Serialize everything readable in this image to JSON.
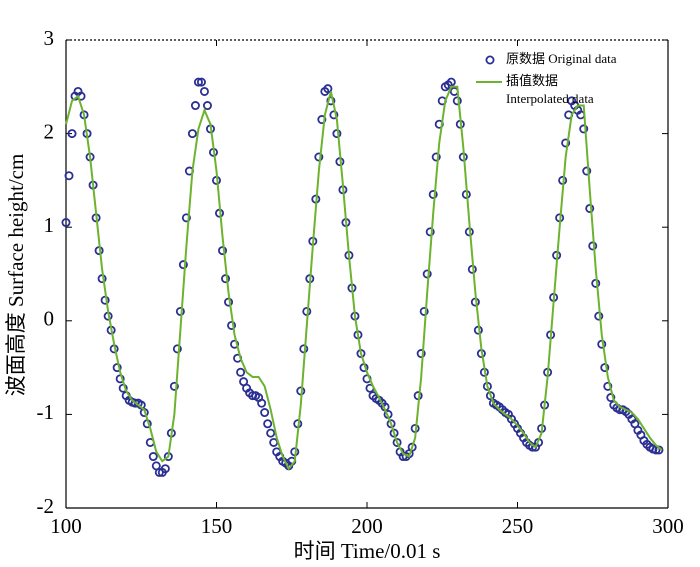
{
  "chart_data": {
    "type": "line",
    "xlabel": "时间 Time/0.01 s",
    "ylabel": "波面高度 Surface height/cm",
    "xlim": [
      100,
      300
    ],
    "xticks": [
      100,
      150,
      200,
      250,
      300
    ],
    "ylim": [
      -2,
      3
    ],
    "yticks": [
      -2,
      -1,
      0,
      1,
      2,
      3
    ],
    "legend": "upper right",
    "series": [
      {
        "name": "原数据 Original data",
        "type": "scatter",
        "color": "#2b2f93",
        "x": [
          100,
          101,
          102,
          103,
          104,
          105,
          106,
          107,
          108,
          109,
          110,
          111,
          112,
          113,
          114,
          115,
          116,
          117,
          118,
          119,
          120,
          121,
          122,
          123,
          124,
          125,
          126,
          127,
          128,
          129,
          130,
          131,
          132,
          133,
          134,
          135,
          136,
          137,
          138,
          139,
          140,
          141,
          142,
          143,
          144,
          145,
          146,
          147,
          148,
          149,
          150,
          151,
          152,
          153,
          154,
          155,
          156,
          157,
          158,
          159,
          160,
          161,
          162,
          163,
          164,
          165,
          166,
          167,
          168,
          169,
          170,
          171,
          172,
          173,
          174,
          175,
          176,
          177,
          178,
          179,
          180,
          181,
          182,
          183,
          184,
          185,
          186,
          187,
          188,
          189,
          190,
          191,
          192,
          193,
          194,
          195,
          196,
          197,
          198,
          199,
          200,
          201,
          202,
          203,
          204,
          205,
          206,
          207,
          208,
          209,
          210,
          211,
          212,
          213,
          214,
          215,
          216,
          217,
          218,
          219,
          220,
          221,
          222,
          223,
          224,
          225,
          226,
          227,
          228,
          229,
          230,
          231,
          232,
          233,
          234,
          235,
          236,
          237,
          238,
          239,
          240,
          241,
          242,
          243,
          244,
          245,
          246,
          247,
          248,
          249,
          250,
          251,
          252,
          253,
          254,
          255,
          256,
          257,
          258,
          259,
          260,
          261,
          262,
          263,
          264,
          265,
          266,
          267,
          268,
          269,
          270,
          271,
          272,
          273,
          274,
          275,
          276,
          277,
          278,
          279,
          280,
          281,
          282,
          283,
          284,
          285,
          286,
          287,
          288,
          289,
          290,
          291,
          292,
          293,
          294,
          295,
          296,
          297
        ],
        "values": [
          1.05,
          1.55,
          2.0,
          2.4,
          2.45,
          2.4,
          2.2,
          2.0,
          1.75,
          1.45,
          1.1,
          0.75,
          0.45,
          0.22,
          0.05,
          -0.1,
          -0.3,
          -0.5,
          -0.62,
          -0.72,
          -0.8,
          -0.85,
          -0.87,
          -0.88,
          -0.88,
          -0.9,
          -0.98,
          -1.1,
          -1.3,
          -1.45,
          -1.55,
          -1.62,
          -1.62,
          -1.58,
          -1.45,
          -1.2,
          -0.7,
          -0.3,
          0.1,
          0.6,
          1.1,
          1.6,
          2.0,
          2.3,
          2.55,
          2.55,
          2.45,
          2.3,
          2.05,
          1.8,
          1.5,
          1.15,
          0.75,
          0.45,
          0.2,
          -0.05,
          -0.25,
          -0.4,
          -0.55,
          -0.65,
          -0.72,
          -0.77,
          -0.8,
          -0.8,
          -0.82,
          -0.88,
          -0.98,
          -1.1,
          -1.2,
          -1.3,
          -1.4,
          -1.45,
          -1.5,
          -1.52,
          -1.55,
          -1.5,
          -1.4,
          -1.1,
          -0.75,
          -0.3,
          0.1,
          0.45,
          0.85,
          1.3,
          1.75,
          2.15,
          2.45,
          2.48,
          2.35,
          2.2,
          2.0,
          1.7,
          1.4,
          1.05,
          0.7,
          0.35,
          0.05,
          -0.15,
          -0.35,
          -0.5,
          -0.62,
          -0.72,
          -0.8,
          -0.83,
          -0.85,
          -0.88,
          -0.92,
          -1.0,
          -1.1,
          -1.2,
          -1.3,
          -1.4,
          -1.45,
          -1.45,
          -1.42,
          -1.35,
          -1.15,
          -0.8,
          -0.35,
          0.1,
          0.5,
          0.95,
          1.35,
          1.75,
          2.1,
          2.35,
          2.5,
          2.52,
          2.55,
          2.45,
          2.35,
          2.1,
          1.75,
          1.35,
          0.95,
          0.55,
          0.2,
          -0.1,
          -0.35,
          -0.55,
          -0.7,
          -0.8,
          -0.88,
          -0.9,
          -0.92,
          -0.95,
          -0.98,
          -1.0,
          -1.05,
          -1.1,
          -1.15,
          -1.2,
          -1.25,
          -1.3,
          -1.33,
          -1.35,
          -1.35,
          -1.3,
          -1.15,
          -0.9,
          -0.55,
          -0.15,
          0.25,
          0.7,
          1.1,
          1.5,
          1.9,
          2.2,
          2.35,
          2.3,
          2.25,
          2.2,
          2.05,
          1.6,
          1.2,
          0.8,
          0.4,
          0.05,
          -0.25,
          -0.5,
          -0.7,
          -0.82,
          -0.9,
          -0.93,
          -0.95,
          -0.95,
          -0.97,
          -1.0,
          -1.05,
          -1.1,
          -1.17,
          -1.22,
          -1.28,
          -1.32,
          -1.35,
          -1.37,
          -1.38,
          -1.38
        ]
      },
      {
        "name": "插值数据 Interpolated data",
        "type": "line",
        "color": "#6cb32e",
        "x": [
          100,
          102,
          104,
          106,
          108,
          110,
          112,
          114,
          116,
          118,
          120,
          122,
          124,
          126,
          128,
          130,
          132,
          134,
          136,
          138,
          140,
          142,
          144,
          146,
          148,
          150,
          152,
          154,
          156,
          158,
          160,
          162,
          164,
          166,
          168,
          170,
          172,
          174,
          176,
          178,
          180,
          182,
          184,
          186,
          188,
          190,
          192,
          194,
          196,
          198,
          200,
          202,
          204,
          206,
          208,
          210,
          212,
          214,
          216,
          218,
          220,
          222,
          224,
          226,
          228,
          230,
          232,
          234,
          236,
          238,
          240,
          242,
          244,
          246,
          248,
          250,
          252,
          254,
          256,
          258,
          260,
          262,
          264,
          266,
          268,
          270,
          272,
          274,
          276,
          278,
          280,
          282,
          284,
          286,
          288,
          290,
          292,
          294,
          296,
          298
        ],
        "values": [
          2.1,
          2.35,
          2.4,
          2.2,
          1.75,
          1.15,
          0.55,
          0.1,
          -0.25,
          -0.55,
          -0.75,
          -0.85,
          -0.9,
          -0.95,
          -1.15,
          -1.4,
          -1.5,
          -1.45,
          -1.0,
          -0.1,
          0.8,
          1.6,
          2.05,
          2.25,
          2.1,
          1.6,
          0.9,
          0.3,
          -0.15,
          -0.4,
          -0.55,
          -0.6,
          -0.6,
          -0.7,
          -0.95,
          -1.25,
          -1.45,
          -1.58,
          -1.5,
          -0.9,
          -0.05,
          0.8,
          1.6,
          2.2,
          2.45,
          2.15,
          1.45,
          0.7,
          0.05,
          -0.35,
          -0.55,
          -0.7,
          -0.82,
          -0.95,
          -1.1,
          -1.3,
          -1.42,
          -1.45,
          -1.25,
          -0.6,
          0.3,
          1.15,
          1.9,
          2.35,
          2.5,
          2.5,
          1.85,
          1.05,
          0.3,
          -0.3,
          -0.7,
          -0.88,
          -0.95,
          -1.0,
          -1.05,
          -1.12,
          -1.2,
          -1.3,
          -1.35,
          -1.2,
          -0.6,
          0.2,
          1.0,
          1.75,
          2.2,
          2.3,
          2.3,
          1.4,
          0.55,
          -0.15,
          -0.6,
          -0.85,
          -0.92,
          -0.95,
          -0.98,
          -1.05,
          -1.15,
          -1.25,
          -1.33,
          -1.38
        ]
      }
    ]
  }
}
